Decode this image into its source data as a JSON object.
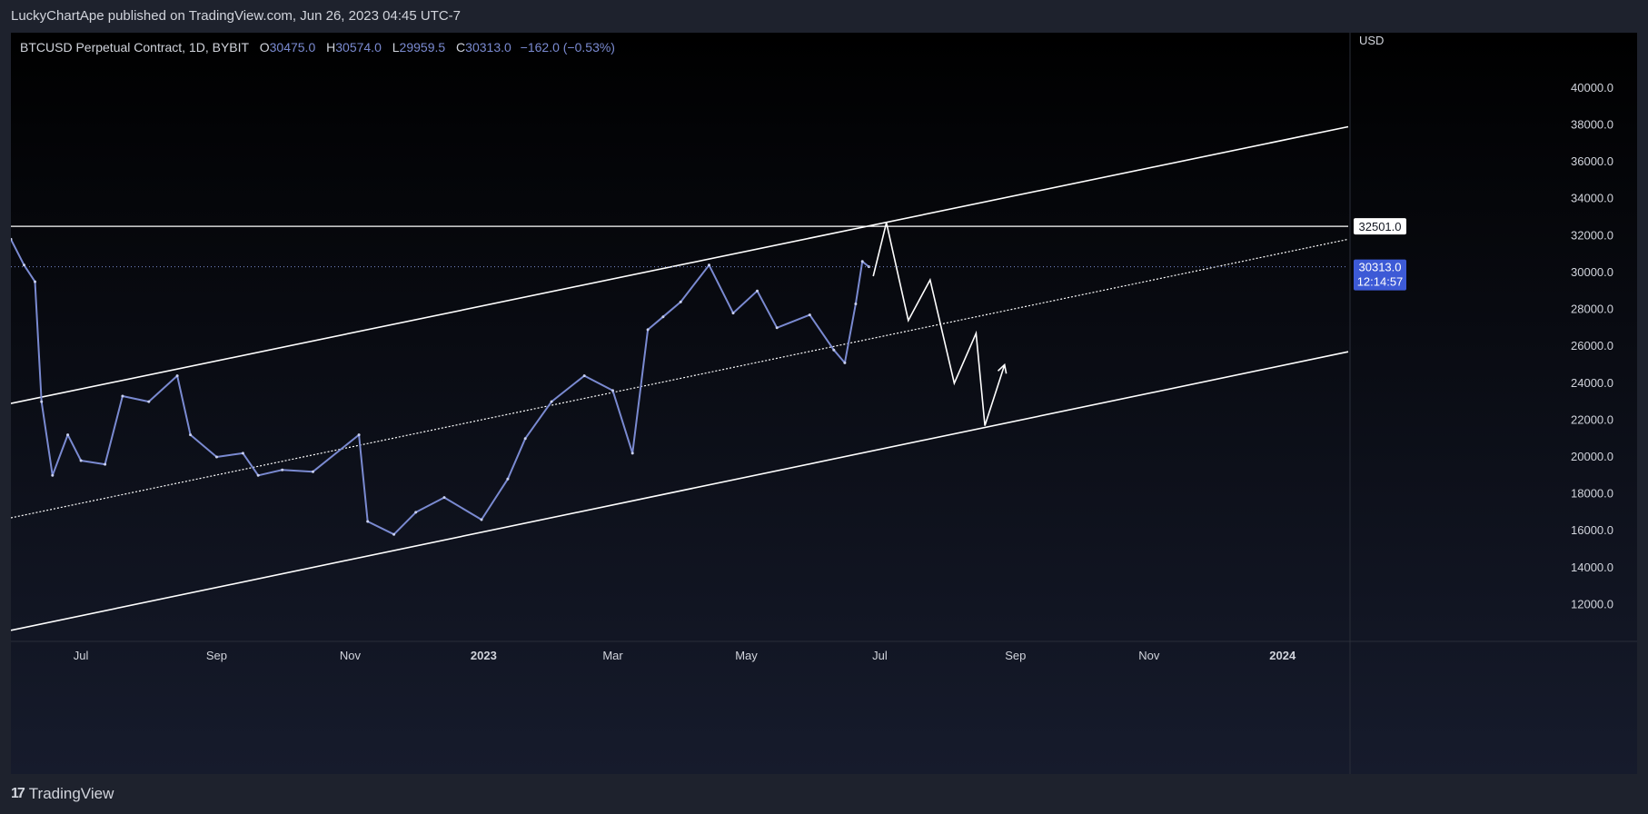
{
  "header": {
    "published": "LuckyChartApe published on TradingView.com, Jun 26, 2023 04:45 UTC-7"
  },
  "legend": {
    "symbol": "BTCUSD Perpetual Contract, 1D, BYBIT",
    "open_label": "O",
    "open": "30475.0",
    "high_label": "H",
    "high": "30574.0",
    "low_label": "L",
    "low": "29959.5",
    "close_label": "C",
    "close": "30313.0",
    "change": "−162.0 (−0.53%)"
  },
  "price_scale": {
    "currency": "USD",
    "hline_label": "32501.0",
    "last_price_label": "30313.0",
    "countdown_label": "12:14:57"
  },
  "footer": {
    "brand": "TradingView",
    "brand_logo": "17"
  },
  "colors": {
    "background": "#000000",
    "candle": "#7a8ad1",
    "line": "#ffffff",
    "accent": "#2962ff"
  },
  "chart_data": {
    "type": "line",
    "title": "BTCUSD Perpetual Contract, 1D, BYBIT",
    "xlabel": "",
    "ylabel": "USD",
    "x_range": [
      "2022-05-30",
      "2024-01-31"
    ],
    "ylim": [
      10000,
      43000
    ],
    "x_ticks": [
      {
        "label": "Jul",
        "date": "2022-07-01"
      },
      {
        "label": "Sep",
        "date": "2022-09-01"
      },
      {
        "label": "Nov",
        "date": "2022-11-01"
      },
      {
        "label": "2023",
        "date": "2023-01-01"
      },
      {
        "label": "Mar",
        "date": "2023-03-01"
      },
      {
        "label": "May",
        "date": "2023-05-01"
      },
      {
        "label": "Jul",
        "date": "2023-07-01"
      },
      {
        "label": "Sep",
        "date": "2023-09-01"
      },
      {
        "label": "Nov",
        "date": "2023-11-01"
      },
      {
        "label": "2024",
        "date": "2024-01-01"
      }
    ],
    "y_ticks": [
      12000,
      14000,
      16000,
      18000,
      20000,
      22000,
      24000,
      26000,
      28000,
      30000,
      32000,
      34000,
      36000,
      38000,
      40000
    ],
    "price_series": [
      {
        "date": "2022-05-30",
        "value": 31800
      },
      {
        "date": "2022-06-05",
        "value": 30400
      },
      {
        "date": "2022-06-10",
        "value": 29500
      },
      {
        "date": "2022-06-13",
        "value": 23000
      },
      {
        "date": "2022-06-18",
        "value": 19000
      },
      {
        "date": "2022-06-25",
        "value": 21200
      },
      {
        "date": "2022-07-01",
        "value": 19800
      },
      {
        "date": "2022-07-12",
        "value": 19600
      },
      {
        "date": "2022-07-20",
        "value": 23300
      },
      {
        "date": "2022-08-01",
        "value": 23000
      },
      {
        "date": "2022-08-14",
        "value": 24400
      },
      {
        "date": "2022-08-20",
        "value": 21200
      },
      {
        "date": "2022-09-01",
        "value": 20000
      },
      {
        "date": "2022-09-13",
        "value": 20200
      },
      {
        "date": "2022-09-20",
        "value": 19000
      },
      {
        "date": "2022-10-01",
        "value": 19300
      },
      {
        "date": "2022-10-15",
        "value": 19200
      },
      {
        "date": "2022-11-05",
        "value": 21200
      },
      {
        "date": "2022-11-09",
        "value": 16500
      },
      {
        "date": "2022-11-21",
        "value": 15800
      },
      {
        "date": "2022-12-01",
        "value": 17000
      },
      {
        "date": "2022-12-14",
        "value": 17800
      },
      {
        "date": "2022-12-31",
        "value": 16600
      },
      {
        "date": "2023-01-12",
        "value": 18800
      },
      {
        "date": "2023-01-20",
        "value": 21000
      },
      {
        "date": "2023-02-01",
        "value": 23000
      },
      {
        "date": "2023-02-16",
        "value": 24400
      },
      {
        "date": "2023-03-01",
        "value": 23600
      },
      {
        "date": "2023-03-10",
        "value": 20200
      },
      {
        "date": "2023-03-17",
        "value": 26900
      },
      {
        "date": "2023-03-24",
        "value": 27600
      },
      {
        "date": "2023-04-01",
        "value": 28400
      },
      {
        "date": "2023-04-14",
        "value": 30400
      },
      {
        "date": "2023-04-25",
        "value": 27800
      },
      {
        "date": "2023-05-06",
        "value": 29000
      },
      {
        "date": "2023-05-15",
        "value": 27000
      },
      {
        "date": "2023-05-30",
        "value": 27700
      },
      {
        "date": "2023-06-10",
        "value": 25800
      },
      {
        "date": "2023-06-15",
        "value": 25100
      },
      {
        "date": "2023-06-20",
        "value": 28300
      },
      {
        "date": "2023-06-23",
        "value": 30600
      },
      {
        "date": "2023-06-26",
        "value": 30313
      }
    ],
    "horizontal_line": 32501,
    "last_price": 30313,
    "channel": {
      "upper": [
        {
          "date": "2022-05-30",
          "value": 22900
        },
        {
          "date": "2024-01-31",
          "value": 37900
        }
      ],
      "middle": [
        {
          "date": "2022-05-30",
          "value": 16700
        },
        {
          "date": "2024-01-31",
          "value": 31800
        }
      ],
      "lower": [
        {
          "date": "2022-05-30",
          "value": 10600
        },
        {
          "date": "2024-01-31",
          "value": 25700
        }
      ]
    },
    "projection": [
      {
        "date": "2023-06-28",
        "value": 29800
      },
      {
        "date": "2023-07-04",
        "value": 32700
      },
      {
        "date": "2023-07-14",
        "value": 27400
      },
      {
        "date": "2023-07-24",
        "value": 29600
      },
      {
        "date": "2023-08-04",
        "value": 24000
      },
      {
        "date": "2023-08-14",
        "value": 26700
      },
      {
        "date": "2023-08-18",
        "value": 21700
      },
      {
        "date": "2023-08-27",
        "value": 25000
      }
    ]
  }
}
